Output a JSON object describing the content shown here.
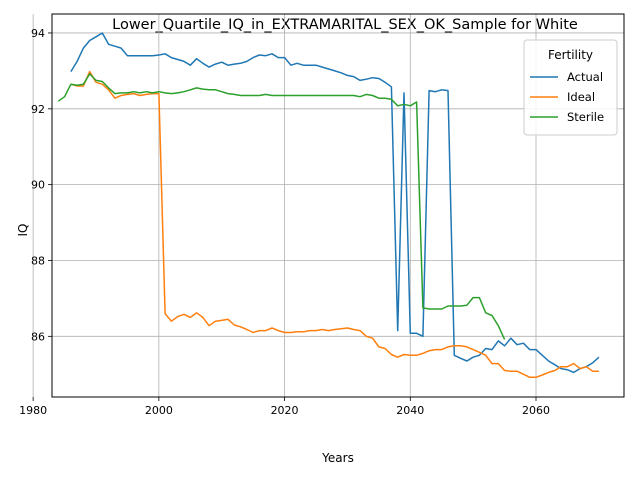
{
  "chart_data": {
    "type": "line",
    "title": "Lower_Quartile_IQ_in_EXTRAMARITAL_SEX_OK_Sample for White",
    "xlabel": "Years",
    "ylabel": "IQ",
    "xlim": [
      1983,
      2074
    ],
    "ylim": [
      84.4,
      94.5
    ],
    "xticks": [
      1980,
      2000,
      2020,
      2040,
      2060
    ],
    "yticks": [
      86,
      88,
      90,
      92,
      94
    ],
    "grid": true,
    "legend": {
      "title": "Fertility",
      "placement": "top-right"
    },
    "series": [
      {
        "name": "Actual",
        "color": "#1f77b4",
        "points": [
          [
            1986,
            92.98
          ],
          [
            1987,
            93.25
          ],
          [
            1988,
            93.6
          ],
          [
            1989,
            93.8
          ],
          [
            1990,
            93.9
          ],
          [
            1991,
            94.0
          ],
          [
            1992,
            93.7
          ],
          [
            1993,
            93.65
          ],
          [
            1994,
            93.6
          ],
          [
            1995,
            93.4
          ],
          [
            1996,
            93.4
          ],
          [
            1997,
            93.4
          ],
          [
            1998,
            93.4
          ],
          [
            1999,
            93.4
          ],
          [
            2000,
            93.42
          ],
          [
            2001,
            93.45
          ],
          [
            2002,
            93.35
          ],
          [
            2003,
            93.3
          ],
          [
            2004,
            93.25
          ],
          [
            2005,
            93.15
          ],
          [
            2006,
            93.32
          ],
          [
            2007,
            93.2
          ],
          [
            2008,
            93.1
          ],
          [
            2009,
            93.18
          ],
          [
            2010,
            93.23
          ],
          [
            2011,
            93.15
          ],
          [
            2012,
            93.18
          ],
          [
            2013,
            93.2
          ],
          [
            2014,
            93.25
          ],
          [
            2015,
            93.35
          ],
          [
            2016,
            93.42
          ],
          [
            2017,
            93.4
          ],
          [
            2018,
            93.45
          ],
          [
            2019,
            93.35
          ],
          [
            2020,
            93.35
          ],
          [
            2021,
            93.15
          ],
          [
            2022,
            93.2
          ],
          [
            2023,
            93.15
          ],
          [
            2024,
            93.15
          ],
          [
            2025,
            93.15
          ],
          [
            2026,
            93.1
          ],
          [
            2027,
            93.05
          ],
          [
            2028,
            93.0
          ],
          [
            2029,
            92.95
          ],
          [
            2030,
            92.88
          ],
          [
            2031,
            92.85
          ],
          [
            2032,
            92.75
          ],
          [
            2033,
            92.78
          ],
          [
            2034,
            92.82
          ],
          [
            2035,
            92.8
          ],
          [
            2036,
            92.7
          ],
          [
            2037,
            92.58
          ],
          [
            2038,
            86.15
          ],
          [
            2039,
            92.42
          ],
          [
            2040,
            86.08
          ],
          [
            2041,
            86.08
          ],
          [
            2042,
            86.0
          ],
          [
            2043,
            92.48
          ],
          [
            2044,
            92.45
          ],
          [
            2045,
            92.5
          ],
          [
            2046,
            92.48
          ],
          [
            2047,
            85.5
          ],
          [
            2048,
            85.42
          ],
          [
            2049,
            85.35
          ],
          [
            2050,
            85.45
          ],
          [
            2051,
            85.5
          ],
          [
            2052,
            85.68
          ],
          [
            2053,
            85.65
          ],
          [
            2054,
            85.88
          ],
          [
            2055,
            85.75
          ],
          [
            2056,
            85.95
          ],
          [
            2057,
            85.78
          ],
          [
            2058,
            85.82
          ],
          [
            2059,
            85.65
          ],
          [
            2060,
            85.65
          ],
          [
            2061,
            85.5
          ],
          [
            2062,
            85.35
          ],
          [
            2063,
            85.25
          ],
          [
            2064,
            85.15
          ],
          [
            2065,
            85.12
          ],
          [
            2066,
            85.05
          ],
          [
            2067,
            85.15
          ],
          [
            2068,
            85.2
          ],
          [
            2069,
            85.3
          ],
          [
            2070,
            85.45
          ]
        ]
      },
      {
        "name": "Ideal",
        "color": "#ff7f0e",
        "points": [
          [
            1986,
            92.65
          ],
          [
            1987,
            92.6
          ],
          [
            1988,
            92.6
          ],
          [
            1989,
            92.98
          ],
          [
            1990,
            92.7
          ],
          [
            1991,
            92.65
          ],
          [
            1992,
            92.5
          ],
          [
            1993,
            92.28
          ],
          [
            1994,
            92.35
          ],
          [
            1995,
            92.38
          ],
          [
            1996,
            92.4
          ],
          [
            1997,
            92.35
          ],
          [
            1998,
            92.38
          ],
          [
            1999,
            92.4
          ],
          [
            2000,
            92.4
          ],
          [
            2001,
            86.6
          ],
          [
            2002,
            86.4
          ],
          [
            2003,
            86.52
          ],
          [
            2004,
            86.58
          ],
          [
            2005,
            86.5
          ],
          [
            2006,
            86.62
          ],
          [
            2007,
            86.5
          ],
          [
            2008,
            86.28
          ],
          [
            2009,
            86.4
          ],
          [
            2010,
            86.42
          ],
          [
            2011,
            86.45
          ],
          [
            2012,
            86.3
          ],
          [
            2013,
            86.25
          ],
          [
            2014,
            86.18
          ],
          [
            2015,
            86.1
          ],
          [
            2016,
            86.15
          ],
          [
            2017,
            86.15
          ],
          [
            2018,
            86.22
          ],
          [
            2019,
            86.15
          ],
          [
            2020,
            86.1
          ],
          [
            2021,
            86.1
          ],
          [
            2022,
            86.12
          ],
          [
            2023,
            86.12
          ],
          [
            2024,
            86.15
          ],
          [
            2025,
            86.15
          ],
          [
            2026,
            86.18
          ],
          [
            2027,
            86.15
          ],
          [
            2028,
            86.18
          ],
          [
            2029,
            86.2
          ],
          [
            2030,
            86.22
          ],
          [
            2031,
            86.18
          ],
          [
            2032,
            86.15
          ],
          [
            2033,
            86.0
          ],
          [
            2034,
            85.95
          ],
          [
            2035,
            85.72
          ],
          [
            2036,
            85.68
          ],
          [
            2037,
            85.52
          ],
          [
            2038,
            85.45
          ],
          [
            2039,
            85.52
          ],
          [
            2040,
            85.5
          ],
          [
            2041,
            85.5
          ],
          [
            2042,
            85.55
          ],
          [
            2043,
            85.62
          ],
          [
            2044,
            85.65
          ],
          [
            2045,
            85.65
          ],
          [
            2046,
            85.72
          ],
          [
            2047,
            85.75
          ],
          [
            2048,
            85.75
          ],
          [
            2049,
            85.72
          ],
          [
            2050,
            85.65
          ],
          [
            2051,
            85.58
          ],
          [
            2052,
            85.5
          ],
          [
            2053,
            85.28
          ],
          [
            2054,
            85.28
          ],
          [
            2055,
            85.1
          ],
          [
            2056,
            85.08
          ],
          [
            2057,
            85.08
          ],
          [
            2058,
            85.0
          ],
          [
            2059,
            84.92
          ],
          [
            2060,
            84.92
          ],
          [
            2061,
            84.98
          ],
          [
            2062,
            85.05
          ],
          [
            2063,
            85.1
          ],
          [
            2064,
            85.2
          ],
          [
            2065,
            85.2
          ],
          [
            2066,
            85.28
          ],
          [
            2067,
            85.15
          ],
          [
            2068,
            85.2
          ],
          [
            2069,
            85.08
          ],
          [
            2070,
            85.08
          ]
        ]
      },
      {
        "name": "Sterile",
        "color": "#2ca02c",
        "points": [
          [
            1984,
            92.2
          ],
          [
            1985,
            92.32
          ],
          [
            1986,
            92.65
          ],
          [
            1987,
            92.62
          ],
          [
            1988,
            92.65
          ],
          [
            1989,
            92.92
          ],
          [
            1990,
            92.75
          ],
          [
            1991,
            92.72
          ],
          [
            1992,
            92.55
          ],
          [
            1993,
            92.4
          ],
          [
            1994,
            92.42
          ],
          [
            1995,
            92.42
          ],
          [
            1996,
            92.45
          ],
          [
            1997,
            92.42
          ],
          [
            1998,
            92.45
          ],
          [
            1999,
            92.42
          ],
          [
            2000,
            92.45
          ],
          [
            2001,
            92.42
          ],
          [
            2002,
            92.4
          ],
          [
            2003,
            92.42
          ],
          [
            2004,
            92.45
          ],
          [
            2005,
            92.5
          ],
          [
            2006,
            92.55
          ],
          [
            2007,
            92.52
          ],
          [
            2008,
            92.5
          ],
          [
            2009,
            92.5
          ],
          [
            2010,
            92.45
          ],
          [
            2011,
            92.4
          ],
          [
            2012,
            92.38
          ],
          [
            2013,
            92.35
          ],
          [
            2014,
            92.35
          ],
          [
            2015,
            92.35
          ],
          [
            2016,
            92.35
          ],
          [
            2017,
            92.38
          ],
          [
            2018,
            92.35
          ],
          [
            2019,
            92.35
          ],
          [
            2020,
            92.35
          ],
          [
            2021,
            92.35
          ],
          [
            2022,
            92.35
          ],
          [
            2023,
            92.35
          ],
          [
            2024,
            92.35
          ],
          [
            2025,
            92.35
          ],
          [
            2026,
            92.35
          ],
          [
            2027,
            92.35
          ],
          [
            2028,
            92.35
          ],
          [
            2029,
            92.35
          ],
          [
            2030,
            92.35
          ],
          [
            2031,
            92.35
          ],
          [
            2032,
            92.32
          ],
          [
            2033,
            92.38
          ],
          [
            2034,
            92.35
          ],
          [
            2035,
            92.28
          ],
          [
            2036,
            92.28
          ],
          [
            2037,
            92.25
          ],
          [
            2038,
            92.08
          ],
          [
            2039,
            92.12
          ],
          [
            2040,
            92.08
          ],
          [
            2041,
            92.18
          ],
          [
            2042,
            86.75
          ],
          [
            2043,
            86.72
          ],
          [
            2044,
            86.72
          ],
          [
            2045,
            86.72
          ],
          [
            2046,
            86.8
          ],
          [
            2047,
            86.8
          ],
          [
            2048,
            86.8
          ],
          [
            2049,
            86.82
          ],
          [
            2050,
            87.02
          ],
          [
            2051,
            87.02
          ],
          [
            2052,
            86.62
          ],
          [
            2053,
            86.55
          ],
          [
            2054,
            86.28
          ],
          [
            2055,
            85.92
          ]
        ]
      }
    ]
  }
}
